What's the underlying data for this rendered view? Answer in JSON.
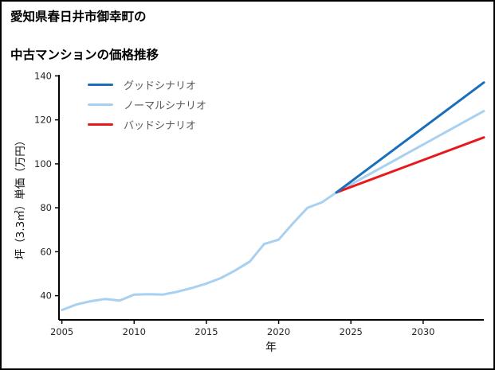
{
  "page": {
    "title_line1": "愛知県春日井市御幸町の",
    "title_line2": "中古マンションの価格推移"
  },
  "chart_data": {
    "type": "line",
    "title": "愛知県春日井市御幸町の中古マンションの価格推移",
    "xlabel": "年",
    "ylabel": "坪（3.3㎡）単価（万円）",
    "xlim": [
      2004.8,
      2034.2
    ],
    "ylim": [
      29,
      140.5
    ],
    "xticks": [
      2005,
      2010,
      2015,
      2020,
      2025,
      2030
    ],
    "yticks": [
      40,
      60,
      80,
      100,
      120,
      140
    ],
    "grid": false,
    "legend_position": "upper-left-inside",
    "axis_color": "#000000",
    "series": [
      {
        "name": "グッドシナリオ",
        "color": "#1b6fba",
        "width": 3,
        "x": [
          2024,
          2034.2
        ],
        "y": [
          87,
          137
        ]
      },
      {
        "name": "ノーマルシナリオ",
        "color": "#a8d0f0",
        "width": 3,
        "x": [
          2005,
          2006,
          2007,
          2008,
          2009,
          2010,
          2011,
          2012,
          2013,
          2014,
          2015,
          2016,
          2017,
          2018,
          2019,
          2020,
          2021,
          2022,
          2023,
          2024,
          2034.2
        ],
        "y": [
          33.5,
          36,
          37.5,
          38.5,
          37.8,
          40.5,
          40.7,
          40.5,
          41.8,
          43.5,
          45.5,
          48,
          51.5,
          55.5,
          63.5,
          65.5,
          73,
          80,
          82.5,
          87,
          124
        ]
      },
      {
        "name": "バッドシナリオ",
        "color": "#e8191c",
        "width": 3,
        "x": [
          2024,
          2034.2
        ],
        "y": [
          87,
          112
        ]
      }
    ]
  }
}
